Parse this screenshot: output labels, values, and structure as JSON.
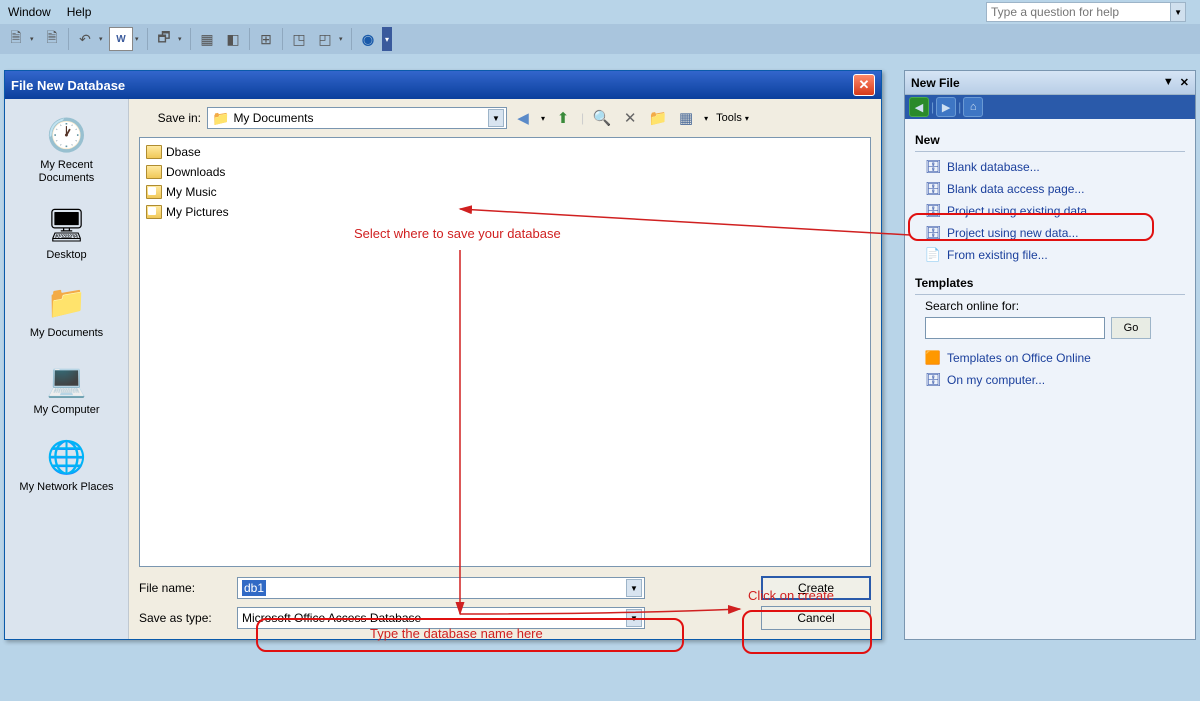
{
  "menubar": {
    "window": "Window",
    "help": "Help"
  },
  "helpbox": {
    "placeholder": "Type a question for help"
  },
  "dialog": {
    "title": "File New Database",
    "savein_label": "Save in:",
    "savein_value": "My Documents",
    "tools_label": "Tools",
    "places": {
      "recent": "My Recent Documents",
      "desktop": "Desktop",
      "mydocs": "My Documents",
      "mycomp": "My Computer",
      "network": "My Network Places"
    },
    "files": {
      "dbase": "Dbase",
      "downloads": "Downloads",
      "music": "My Music",
      "pictures": "My Pictures"
    },
    "filename_label": "File name:",
    "filename_value": "db1",
    "saveas_label": "Save as type:",
    "saveas_value": "Microsoft Office Access Database",
    "create_btn": "Create",
    "cancel_btn": "Cancel"
  },
  "taskpane": {
    "title": "New File",
    "sections": {
      "new": "New",
      "templates": "Templates"
    },
    "links": {
      "blank_db": "Blank database...",
      "blank_dap": "Blank data access page...",
      "proj_exist": "Project using existing data...",
      "proj_new": "Project using new data...",
      "from_file": "From existing file...",
      "office_online": "Templates on Office Online",
      "on_computer": "On my computer..."
    },
    "search_label": "Search online for:",
    "go_btn": "Go"
  },
  "annotations": {
    "a1": "Select where to save your database",
    "a2": "Type the database name here",
    "a3": "Click on create"
  },
  "colors": {
    "bg": "#b8d4e8",
    "dialog_bg": "#f1ede1",
    "titlebar_grad_top": "#3366cc",
    "titlebar_grad_bot": "#0a3f9c",
    "anno_red": "#d02020",
    "link_blue": "#1a3f9c"
  }
}
